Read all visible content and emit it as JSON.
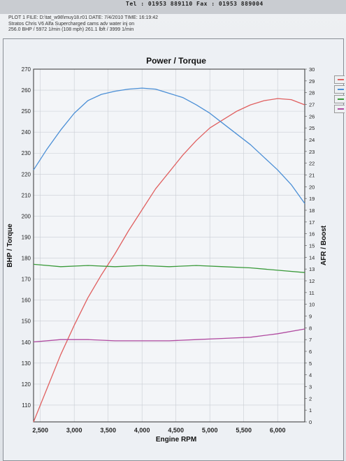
{
  "header": {
    "contact": "Tel : 01953 889110   Fax : 01953 889004",
    "line1": "PLOT 1 FILE: D:\\tat_w98\\muy18.r01  DATE: 7/4/2010  TIME: 16:19:42",
    "line2": "Stratos Chris V6 Alfa Supercharged  cams adv  water inj on",
    "line3": "256.0 BHP / 5972 1/min (108 mph)   261.1 lbft / 3999 1/min"
  },
  "colors": {
    "power": "#e06060",
    "torque": "#4b8fd6",
    "afr": "#3a9a3a",
    "boost": "#b04aa0"
  },
  "chart_data": {
    "type": "line",
    "title": "Power / Torque",
    "xlabel": "Engine RPM",
    "ylabel_left": "BHP / Torque",
    "ylabel_right": "AFR / Boost",
    "xlim": [
      2400,
      6400
    ],
    "ylim_left": [
      102,
      270
    ],
    "ylim_right": [
      0,
      30
    ],
    "x_ticks": [
      "2,500",
      "3,000",
      "3,500",
      "4,000",
      "4,500",
      "5,000",
      "5,500",
      "6,000"
    ],
    "y_left_ticks": [
      "270",
      "260",
      "250",
      "240",
      "230",
      "220",
      "210",
      "200",
      "190",
      "180",
      "170",
      "160",
      "150",
      "140",
      "130",
      "120",
      "110"
    ],
    "y_right_ticks": [
      "30",
      "29",
      "28",
      "27",
      "26",
      "25",
      "24",
      "23",
      "22",
      "21",
      "20",
      "19",
      "18",
      "17",
      "16",
      "15",
      "14",
      "13",
      "12",
      "11",
      "10",
      "9",
      "8",
      "7",
      "6",
      "5",
      "4",
      "3",
      "2",
      "1",
      "0"
    ],
    "grid": true,
    "series": [
      {
        "key": "power",
        "axis": "left",
        "x": [
          2400,
          2600,
          2800,
          3000,
          3200,
          3400,
          3600,
          3800,
          4000,
          4200,
          4400,
          4600,
          4800,
          5000,
          5200,
          5400,
          5600,
          5800,
          6000,
          6200,
          6400
        ],
        "values": [
          102,
          118,
          134,
          148,
          161,
          172,
          182,
          193,
          203,
          213,
          221,
          229,
          236,
          242,
          246,
          250,
          253,
          255,
          256,
          255.5,
          253
        ]
      },
      {
        "key": "torque",
        "axis": "left",
        "x": [
          2400,
          2600,
          2800,
          3000,
          3200,
          3400,
          3600,
          3800,
          4000,
          4200,
          4400,
          4600,
          4800,
          5000,
          5200,
          5400,
          5600,
          5800,
          6000,
          6200,
          6400
        ],
        "values": [
          222,
          232,
          241,
          249,
          255,
          258,
          259.5,
          260.5,
          261,
          260.5,
          258.5,
          256.5,
          253,
          249,
          244,
          239,
          234,
          228,
          222,
          215,
          206
        ]
      },
      {
        "key": "afr",
        "axis": "right",
        "x": [
          2400,
          2800,
          3200,
          3600,
          4000,
          4400,
          4800,
          5200,
          5600,
          6000,
          6400
        ],
        "values": [
          13.4,
          13.2,
          13.3,
          13.2,
          13.3,
          13.2,
          13.3,
          13.2,
          13.1,
          12.9,
          12.7
        ]
      },
      {
        "key": "boost",
        "axis": "right",
        "x": [
          2400,
          2800,
          3200,
          3600,
          4000,
          4400,
          4800,
          5200,
          5600,
          6000,
          6400
        ],
        "values": [
          6.8,
          7.0,
          7.0,
          6.9,
          6.9,
          6.9,
          7.0,
          7.1,
          7.2,
          7.5,
          7.9
        ]
      }
    ]
  }
}
